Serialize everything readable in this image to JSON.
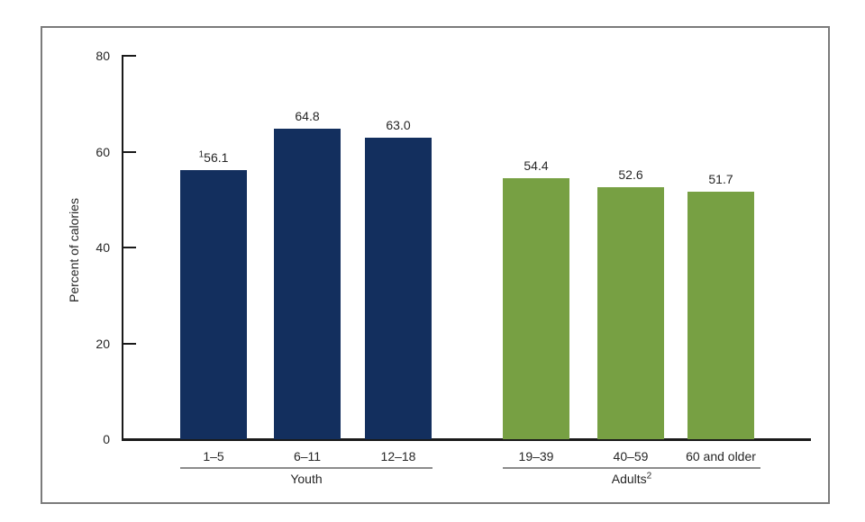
{
  "chart_data": {
    "type": "bar",
    "title": "",
    "ylabel": "Percent of calories",
    "xlabel": "",
    "ylim": [
      0,
      80
    ],
    "yticks": [
      0,
      20,
      40,
      60,
      80
    ],
    "grid": false,
    "legend": "none",
    "frame_border_color": "#7b7b7b",
    "axis_color": "#1a1a1a",
    "underline_color": "#8c8c8c",
    "groups": [
      {
        "label": "Youth",
        "label_superscript": "",
        "color": "#132f5e",
        "bars": [
          {
            "category": "1–5",
            "value": 56.1,
            "value_label": "56.1",
            "value_superscript": "1"
          },
          {
            "category": "6–11",
            "value": 64.8,
            "value_label": "64.8",
            "value_superscript": ""
          },
          {
            "category": "12–18",
            "value": 63.0,
            "value_label": "63.0",
            "value_superscript": ""
          }
        ]
      },
      {
        "label": "Adults",
        "label_superscript": "2",
        "color": "#77a043",
        "bars": [
          {
            "category": "19–39",
            "value": 54.4,
            "value_label": "54.4",
            "value_superscript": ""
          },
          {
            "category": "40–59",
            "value": 52.6,
            "value_label": "52.6",
            "value_superscript": ""
          },
          {
            "category": "60 and older",
            "value": 51.7,
            "value_label": "51.7",
            "value_superscript": ""
          }
        ]
      }
    ]
  }
}
